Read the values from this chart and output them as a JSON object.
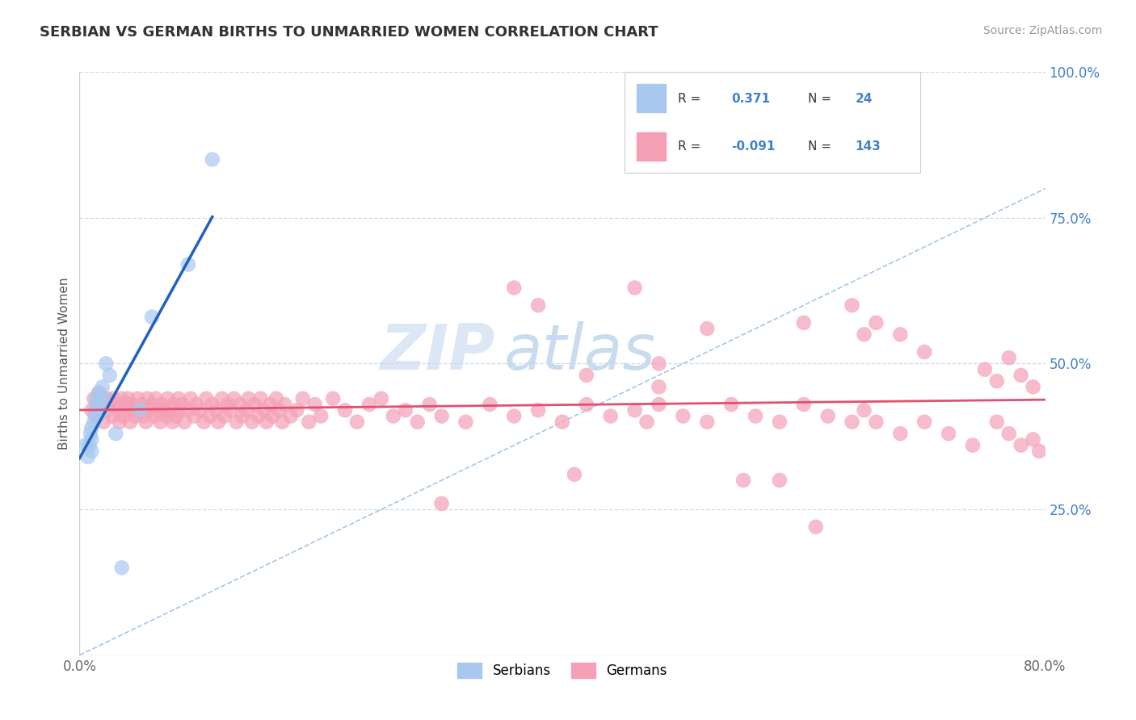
{
  "title": "SERBIAN VS GERMAN BIRTHS TO UNMARRIED WOMEN CORRELATION CHART",
  "source": "Source: ZipAtlas.com",
  "ylabel": "Births to Unmarried Women",
  "xmin": 0.0,
  "xmax": 0.8,
  "ymin": 0.0,
  "ymax": 1.0,
  "serbian_R": 0.371,
  "serbian_N": 24,
  "german_R": -0.091,
  "german_N": 143,
  "serbian_color": "#a8c8f0",
  "german_color": "#f5a0b5",
  "serbian_line_color": "#2060c0",
  "german_line_color": "#e05070",
  "ref_line_color": "#90b8e0",
  "grid_color": "#d0d8e8",
  "background_color": "#ffffff",
  "right_axis_color": "#4080cc",
  "watermark_color": "#c8ddf5",
  "serbian_x": [
    0.005,
    0.007,
    0.008,
    0.009,
    0.01,
    0.01,
    0.01,
    0.012,
    0.013,
    0.014,
    0.015,
    0.015,
    0.016,
    0.018,
    0.019,
    0.02,
    0.022,
    0.025,
    0.03,
    0.035,
    0.05,
    0.06,
    0.09,
    0.11
  ],
  "serbian_y": [
    0.36,
    0.34,
    0.36,
    0.38,
    0.35,
    0.37,
    0.39,
    0.4,
    0.42,
    0.44,
    0.41,
    0.43,
    0.45,
    0.42,
    0.46,
    0.44,
    0.5,
    0.48,
    0.38,
    0.15,
    0.42,
    0.58,
    0.67,
    0.85
  ],
  "german_x": [
    0.01,
    0.012,
    0.013,
    0.015,
    0.016,
    0.018,
    0.02,
    0.022,
    0.023,
    0.025,
    0.027,
    0.028,
    0.03,
    0.032,
    0.033,
    0.035,
    0.036,
    0.038,
    0.04,
    0.04,
    0.042,
    0.043,
    0.045,
    0.046,
    0.048,
    0.05,
    0.052,
    0.053,
    0.055,
    0.056,
    0.058,
    0.06,
    0.062,
    0.063,
    0.065,
    0.067,
    0.068,
    0.07,
    0.072,
    0.073,
    0.075,
    0.077,
    0.078,
    0.08,
    0.082,
    0.083,
    0.085,
    0.087,
    0.09,
    0.092,
    0.095,
    0.097,
    0.1,
    0.103,
    0.105,
    0.108,
    0.11,
    0.113,
    0.115,
    0.118,
    0.12,
    0.123,
    0.125,
    0.128,
    0.13,
    0.133,
    0.135,
    0.138,
    0.14,
    0.143,
    0.145,
    0.148,
    0.15,
    0.153,
    0.155,
    0.158,
    0.16,
    0.163,
    0.165,
    0.168,
    0.17,
    0.175,
    0.18,
    0.185,
    0.19,
    0.195,
    0.2,
    0.21,
    0.22,
    0.23,
    0.24,
    0.25,
    0.26,
    0.27,
    0.28,
    0.29,
    0.3,
    0.32,
    0.34,
    0.36,
    0.38,
    0.4,
    0.42,
    0.44,
    0.46,
    0.47,
    0.48,
    0.5,
    0.52,
    0.54,
    0.56,
    0.58,
    0.6,
    0.62,
    0.64,
    0.65,
    0.66,
    0.68,
    0.7,
    0.72,
    0.74,
    0.76,
    0.77,
    0.78,
    0.79,
    0.795,
    0.46,
    0.58,
    0.64,
    0.66,
    0.68,
    0.7,
    0.75,
    0.76,
    0.77,
    0.78,
    0.79,
    0.36,
    0.38,
    0.52,
    0.48,
    0.3,
    0.41,
    0.55,
    0.61,
    0.42,
    0.48,
    0.6,
    0.65
  ],
  "german_y": [
    0.42,
    0.44,
    0.41,
    0.43,
    0.45,
    0.42,
    0.4,
    0.44,
    0.42,
    0.43,
    0.41,
    0.44,
    0.43,
    0.42,
    0.4,
    0.44,
    0.41,
    0.43,
    0.42,
    0.44,
    0.4,
    0.43,
    0.42,
    0.41,
    0.44,
    0.42,
    0.43,
    0.41,
    0.4,
    0.44,
    0.42,
    0.43,
    0.41,
    0.44,
    0.42,
    0.4,
    0.43,
    0.42,
    0.41,
    0.44,
    0.42,
    0.4,
    0.43,
    0.41,
    0.44,
    0.42,
    0.43,
    0.4,
    0.42,
    0.44,
    0.41,
    0.43,
    0.42,
    0.4,
    0.44,
    0.41,
    0.43,
    0.42,
    0.4,
    0.44,
    0.41,
    0.43,
    0.42,
    0.44,
    0.4,
    0.43,
    0.41,
    0.42,
    0.44,
    0.4,
    0.43,
    0.41,
    0.44,
    0.42,
    0.4,
    0.43,
    0.41,
    0.44,
    0.42,
    0.4,
    0.43,
    0.41,
    0.42,
    0.44,
    0.4,
    0.43,
    0.41,
    0.44,
    0.42,
    0.4,
    0.43,
    0.44,
    0.41,
    0.42,
    0.4,
    0.43,
    0.41,
    0.4,
    0.43,
    0.41,
    0.42,
    0.4,
    0.43,
    0.41,
    0.42,
    0.4,
    0.43,
    0.41,
    0.4,
    0.43,
    0.41,
    0.4,
    0.43,
    0.41,
    0.4,
    0.42,
    0.4,
    0.38,
    0.4,
    0.38,
    0.36,
    0.4,
    0.38,
    0.36,
    0.37,
    0.35,
    0.63,
    0.3,
    0.6,
    0.57,
    0.55,
    0.52,
    0.49,
    0.47,
    0.51,
    0.48,
    0.46,
    0.63,
    0.6,
    0.56,
    0.5,
    0.26,
    0.31,
    0.3,
    0.22,
    0.48,
    0.46,
    0.57,
    0.55
  ]
}
